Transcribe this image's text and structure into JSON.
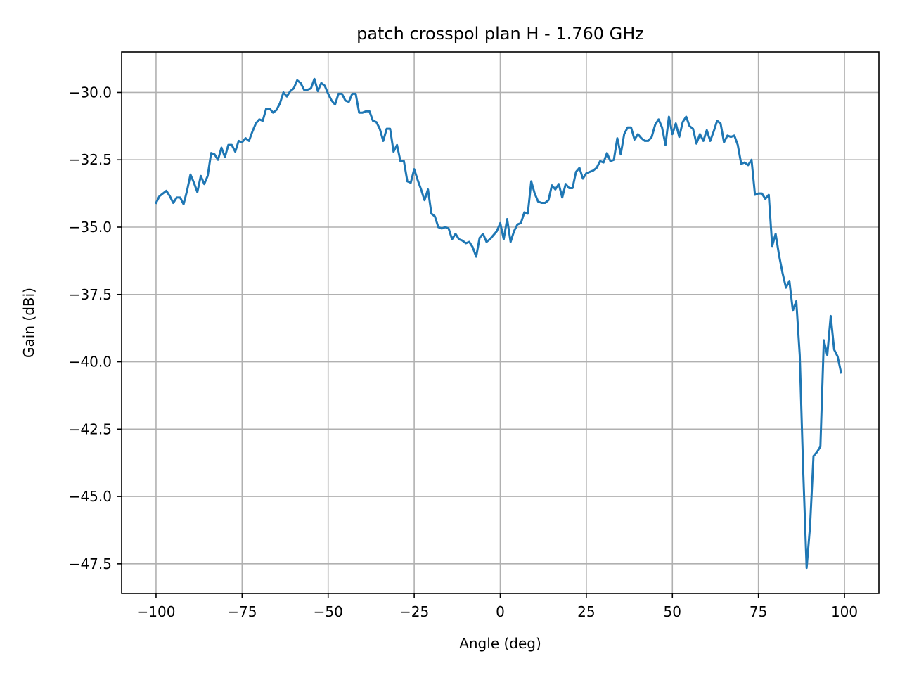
{
  "chart_data": {
    "type": "line",
    "title": "patch crosspol plan H - 1.760 GHz",
    "xlabel": "Angle (deg)",
    "ylabel": "Gain (dBi)",
    "xlim": [
      -110,
      110
    ],
    "ylim": [
      -48.6,
      -28.5
    ],
    "grid": true,
    "x_ticks": [
      -100,
      -75,
      -50,
      -25,
      0,
      25,
      50,
      75,
      100
    ],
    "x_tick_labels": [
      "−100",
      "−75",
      "−50",
      "−25",
      "0",
      "25",
      "50",
      "75",
      "100"
    ],
    "y_ticks": [
      -30.0,
      -32.5,
      -35.0,
      -37.5,
      -40.0,
      -42.5,
      -45.0,
      -47.5
    ],
    "y_tick_labels": [
      "−30.0",
      "−32.5",
      "−35.0",
      "−37.5",
      "−40.0",
      "−42.5",
      "−45.0",
      "−47.5"
    ],
    "series": [
      {
        "color": "#1f77b4",
        "points": [
          [
            -100,
            -34.1
          ],
          [
            -99,
            -33.85
          ],
          [
            -98,
            -33.75
          ],
          [
            -97,
            -33.65
          ],
          [
            -96,
            -33.85
          ],
          [
            -95,
            -34.1
          ],
          [
            -94,
            -33.9
          ],
          [
            -93,
            -33.9
          ],
          [
            -92,
            -34.15
          ],
          [
            -91,
            -33.65
          ],
          [
            -90,
            -33.05
          ],
          [
            -89,
            -33.35
          ],
          [
            -88,
            -33.7
          ],
          [
            -87,
            -33.1
          ],
          [
            -86,
            -33.4
          ],
          [
            -85,
            -33.1
          ],
          [
            -84,
            -32.25
          ],
          [
            -83,
            -32.3
          ],
          [
            -82,
            -32.5
          ],
          [
            -81,
            -32.05
          ],
          [
            -80,
            -32.4
          ],
          [
            -79,
            -31.95
          ],
          [
            -78,
            -31.95
          ],
          [
            -77,
            -32.2
          ],
          [
            -76,
            -31.8
          ],
          [
            -75,
            -31.85
          ],
          [
            -74,
            -31.7
          ],
          [
            -73,
            -31.8
          ],
          [
            -72,
            -31.45
          ],
          [
            -71,
            -31.15
          ],
          [
            -70,
            -31.0
          ],
          [
            -69,
            -31.05
          ],
          [
            -68,
            -30.6
          ],
          [
            -67,
            -30.6
          ],
          [
            -66,
            -30.75
          ],
          [
            -65,
            -30.65
          ],
          [
            -64,
            -30.4
          ],
          [
            -63,
            -30.0
          ],
          [
            -62,
            -30.15
          ],
          [
            -61,
            -29.95
          ],
          [
            -60,
            -29.85
          ],
          [
            -59,
            -29.55
          ],
          [
            -58,
            -29.65
          ],
          [
            -57,
            -29.9
          ],
          [
            -56,
            -29.9
          ],
          [
            -55,
            -29.85
          ],
          [
            -54,
            -29.5
          ],
          [
            -53,
            -29.95
          ],
          [
            -52,
            -29.65
          ],
          [
            -51,
            -29.75
          ],
          [
            -50,
            -30.05
          ],
          [
            -49,
            -30.3
          ],
          [
            -48,
            -30.45
          ],
          [
            -47,
            -30.05
          ],
          [
            -46,
            -30.05
          ],
          [
            -45,
            -30.3
          ],
          [
            -44,
            -30.35
          ],
          [
            -43,
            -30.05
          ],
          [
            -42,
            -30.05
          ],
          [
            -41,
            -30.75
          ],
          [
            -40,
            -30.75
          ],
          [
            -39,
            -30.7
          ],
          [
            -38,
            -30.7
          ],
          [
            -37,
            -31.05
          ],
          [
            -36,
            -31.1
          ],
          [
            -35,
            -31.35
          ],
          [
            -34,
            -31.8
          ],
          [
            -33,
            -31.35
          ],
          [
            -32,
            -31.35
          ],
          [
            -31,
            -32.2
          ],
          [
            -30,
            -31.95
          ],
          [
            -29,
            -32.55
          ],
          [
            -28,
            -32.55
          ],
          [
            -27,
            -33.3
          ],
          [
            -26,
            -33.35
          ],
          [
            -25,
            -32.85
          ],
          [
            -24,
            -33.25
          ],
          [
            -23,
            -33.6
          ],
          [
            -22,
            -34.0
          ],
          [
            -21,
            -33.6
          ],
          [
            -20,
            -34.5
          ],
          [
            -19,
            -34.6
          ],
          [
            -18,
            -35.0
          ],
          [
            -17,
            -35.05
          ],
          [
            -16,
            -35.0
          ],
          [
            -15,
            -35.05
          ],
          [
            -14,
            -35.45
          ],
          [
            -13,
            -35.25
          ],
          [
            -12,
            -35.45
          ],
          [
            -11,
            -35.5
          ],
          [
            -10,
            -35.6
          ],
          [
            -9,
            -35.55
          ],
          [
            -8,
            -35.75
          ],
          [
            -7,
            -36.1
          ],
          [
            -6,
            -35.4
          ],
          [
            -5,
            -35.25
          ],
          [
            -4,
            -35.55
          ],
          [
            -3,
            -35.45
          ],
          [
            -2,
            -35.3
          ],
          [
            -1,
            -35.15
          ],
          [
            0,
            -34.85
          ],
          [
            1,
            -35.45
          ],
          [
            2,
            -34.7
          ],
          [
            3,
            -35.55
          ],
          [
            4,
            -35.15
          ],
          [
            5,
            -34.9
          ],
          [
            6,
            -34.85
          ],
          [
            7,
            -34.45
          ],
          [
            8,
            -34.5
          ],
          [
            9,
            -33.3
          ],
          [
            10,
            -33.75
          ],
          [
            11,
            -34.05
          ],
          [
            12,
            -34.1
          ],
          [
            13,
            -34.1
          ],
          [
            14,
            -34.0
          ],
          [
            15,
            -33.45
          ],
          [
            16,
            -33.6
          ],
          [
            17,
            -33.4
          ],
          [
            18,
            -33.9
          ],
          [
            19,
            -33.4
          ],
          [
            20,
            -33.55
          ],
          [
            21,
            -33.55
          ],
          [
            22,
            -32.95
          ],
          [
            23,
            -32.8
          ],
          [
            24,
            -33.2
          ],
          [
            25,
            -33.0
          ],
          [
            26,
            -32.95
          ],
          [
            27,
            -32.9
          ],
          [
            28,
            -32.8
          ],
          [
            29,
            -32.55
          ],
          [
            30,
            -32.6
          ],
          [
            31,
            -32.25
          ],
          [
            32,
            -32.55
          ],
          [
            33,
            -32.5
          ],
          [
            34,
            -31.7
          ],
          [
            35,
            -32.3
          ],
          [
            36,
            -31.55
          ],
          [
            37,
            -31.3
          ],
          [
            38,
            -31.3
          ],
          [
            39,
            -31.75
          ],
          [
            40,
            -31.55
          ],
          [
            41,
            -31.7
          ],
          [
            42,
            -31.8
          ],
          [
            43,
            -31.8
          ],
          [
            44,
            -31.65
          ],
          [
            45,
            -31.2
          ],
          [
            46,
            -31.0
          ],
          [
            47,
            -31.3
          ],
          [
            48,
            -31.95
          ],
          [
            49,
            -30.9
          ],
          [
            50,
            -31.55
          ],
          [
            51,
            -31.15
          ],
          [
            52,
            -31.65
          ],
          [
            53,
            -31.1
          ],
          [
            54,
            -30.9
          ],
          [
            55,
            -31.25
          ],
          [
            56,
            -31.35
          ],
          [
            57,
            -31.9
          ],
          [
            58,
            -31.55
          ],
          [
            59,
            -31.8
          ],
          [
            60,
            -31.4
          ],
          [
            61,
            -31.8
          ],
          [
            62,
            -31.45
          ],
          [
            63,
            -31.05
          ],
          [
            64,
            -31.15
          ],
          [
            65,
            -31.85
          ],
          [
            66,
            -31.6
          ],
          [
            67,
            -31.65
          ],
          [
            68,
            -31.6
          ],
          [
            69,
            -31.95
          ],
          [
            70,
            -32.65
          ],
          [
            71,
            -32.6
          ],
          [
            72,
            -32.7
          ],
          [
            73,
            -32.5
          ],
          [
            74,
            -33.8
          ],
          [
            75,
            -33.75
          ],
          [
            76,
            -33.75
          ],
          [
            77,
            -33.95
          ],
          [
            78,
            -33.8
          ],
          [
            79,
            -35.7
          ],
          [
            80,
            -35.25
          ],
          [
            81,
            -36.05
          ],
          [
            82,
            -36.7
          ],
          [
            83,
            -37.25
          ],
          [
            84,
            -37.0
          ],
          [
            85,
            -38.1
          ],
          [
            86,
            -37.75
          ],
          [
            87,
            -39.75
          ],
          [
            88,
            -44.0
          ],
          [
            89,
            -47.65
          ],
          [
            90,
            -46.1
          ],
          [
            91,
            -43.5
          ],
          [
            92,
            -43.35
          ],
          [
            93,
            -43.15
          ],
          [
            94,
            -39.2
          ],
          [
            95,
            -39.75
          ],
          [
            96,
            -38.3
          ],
          [
            97,
            -39.55
          ],
          [
            98,
            -39.8
          ],
          [
            99,
            -40.4
          ]
        ]
      }
    ]
  }
}
